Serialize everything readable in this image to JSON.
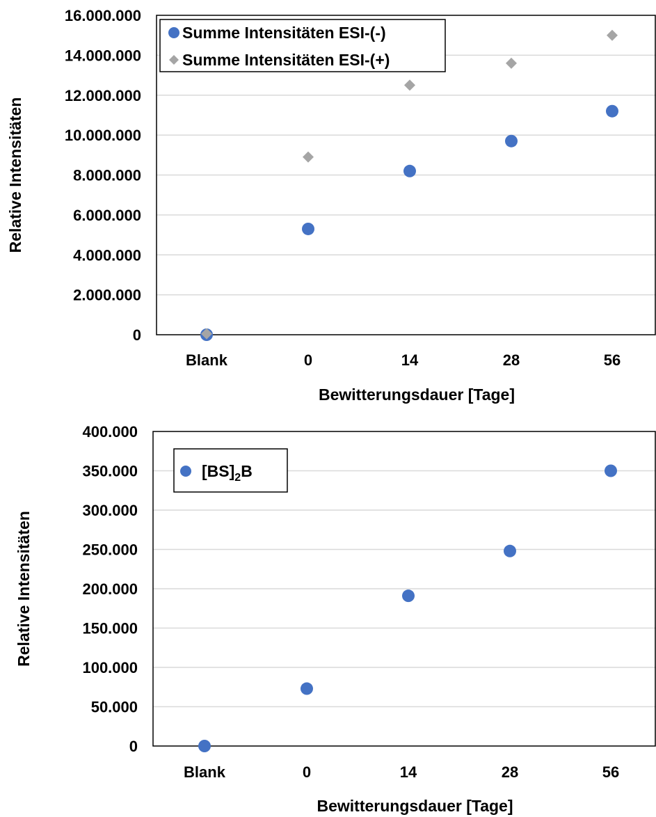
{
  "colors": {
    "series_negative": "#4472C4",
    "series_positive": "#A5A5A5",
    "grid": "#D9D9D9",
    "axis": "#000000"
  },
  "chart_data": [
    {
      "type": "scatter",
      "categories": [
        "Blank",
        "0",
        "14",
        "28",
        "56"
      ],
      "xlabel": "Bewitterungsdauer  [Tage]",
      "ylabel": "Relative Intensitäten",
      "ylim": [
        0,
        16000000
      ],
      "yticks": [
        0,
        2000000,
        4000000,
        6000000,
        8000000,
        10000000,
        12000000,
        14000000,
        16000000
      ],
      "ytick_labels": [
        "0",
        "2.000.000",
        "4.000.000",
        "6.000.000",
        "8.000.000",
        "10.000.000",
        "12.000.000",
        "14.000.000",
        "16.000.000"
      ],
      "grid": true,
      "legend_position": "top-left",
      "series": [
        {
          "name": "Summe Intensitäten ESI-(-)",
          "marker": "circle",
          "color": "#4472C4",
          "values": [
            0,
            5300000,
            8200000,
            9700000,
            11200000
          ]
        },
        {
          "name": "Summe Intensitäten ESI-(+)",
          "marker": "diamond",
          "color": "#A5A5A5",
          "values": [
            50000,
            8900000,
            12500000,
            13600000,
            15000000
          ]
        }
      ]
    },
    {
      "type": "scatter",
      "categories": [
        "Blank",
        "0",
        "14",
        "28",
        "56"
      ],
      "xlabel": "Bewitterungsdauer  [Tage]",
      "ylabel": "Relative Intensitäten",
      "ylim": [
        0,
        400000
      ],
      "yticks": [
        0,
        50000,
        100000,
        150000,
        200000,
        250000,
        300000,
        350000,
        400000
      ],
      "ytick_labels": [
        "0",
        "50.000",
        "100.000",
        "150.000",
        "200.000",
        "250.000",
        "300.000",
        "350.000",
        "400.000"
      ],
      "grid": true,
      "legend_position": "top-left",
      "series": [
        {
          "name": "[BS]2B",
          "name_main": "[BS]",
          "name_sub": "2",
          "name_tail": "B",
          "marker": "circle",
          "color": "#4472C4",
          "values": [
            0,
            73000,
            191000,
            248000,
            350000
          ]
        }
      ]
    }
  ]
}
